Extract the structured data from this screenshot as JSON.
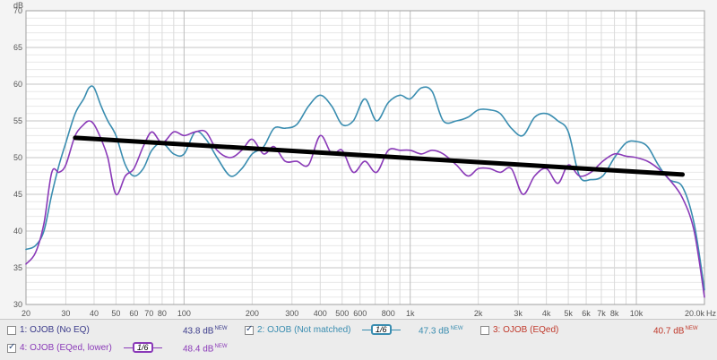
{
  "chart_data": {
    "type": "line",
    "yunit": "dB",
    "xunit": "Hz",
    "xscale": "log",
    "xlim": [
      20,
      20000
    ],
    "ylim": [
      30,
      70
    ],
    "yticks": [
      "30",
      "35",
      "40",
      "45",
      "50",
      "55",
      "60",
      "65",
      "70"
    ],
    "xticks": [
      {
        "v": 20,
        "label": "20"
      },
      {
        "v": 30,
        "label": "30"
      },
      {
        "v": 40,
        "label": "40"
      },
      {
        "v": 50,
        "label": "50"
      },
      {
        "v": 60,
        "label": "60"
      },
      {
        "v": 70,
        "label": "70"
      },
      {
        "v": 80,
        "label": "80"
      },
      {
        "v": 100,
        "label": "100"
      },
      {
        "v": 200,
        "label": "200"
      },
      {
        "v": 300,
        "label": "300"
      },
      {
        "v": 400,
        "label": "400"
      },
      {
        "v": 500,
        "label": "500"
      },
      {
        "v": 600,
        "label": "600"
      },
      {
        "v": 800,
        "label": "800"
      },
      {
        "v": 1000,
        "label": "1k"
      },
      {
        "v": 2000,
        "label": "2k"
      },
      {
        "v": 3000,
        "label": "3k"
      },
      {
        "v": 4000,
        "label": "4k"
      },
      {
        "v": 5000,
        "label": "5k"
      },
      {
        "v": 6000,
        "label": "6k"
      },
      {
        "v": 7000,
        "label": "7k"
      },
      {
        "v": 8000,
        "label": "8k"
      },
      {
        "v": 10000,
        "label": "10k"
      },
      {
        "v": 20000,
        "label": "20.0k"
      }
    ],
    "grid": true,
    "series": [
      {
        "name": "2: OJOB (Not matched)",
        "color": "#3a8db0",
        "x": [
          20,
          22,
          24,
          26,
          28,
          30,
          33,
          36,
          38,
          40,
          43,
          46,
          50,
          55,
          60,
          66,
          72,
          80,
          90,
          100,
          112,
          125,
          140,
          160,
          180,
          200,
          225,
          250,
          280,
          315,
          355,
          400,
          450,
          500,
          560,
          630,
          710,
          800,
          900,
          1000,
          1120,
          1250,
          1400,
          1600,
          1800,
          2000,
          2250,
          2500,
          2800,
          3150,
          3550,
          4000,
          4500,
          5000,
          5600,
          6300,
          7100,
          8000,
          9000,
          10000,
          11200,
          12500,
          14000,
          16000,
          18000,
          20000
        ],
        "y": [
          37.5,
          38,
          40,
          45,
          49,
          52,
          56,
          58,
          59.5,
          59.5,
          57,
          55,
          53,
          49,
          47.5,
          48.5,
          51,
          52,
          50.5,
          50.5,
          53.5,
          52.5,
          50,
          47.5,
          48.5,
          50.5,
          51.5,
          54,
          54,
          54.5,
          57,
          58.5,
          57,
          54.5,
          55,
          58,
          55,
          57.5,
          58.5,
          58,
          59.5,
          59,
          55,
          55,
          55.5,
          56.5,
          56.5,
          56,
          54,
          53,
          55.5,
          56,
          55,
          53.5,
          47.5,
          47,
          47.5,
          50,
          52,
          52.2,
          51.5,
          49,
          47,
          46,
          41,
          32
        ]
      },
      {
        "name": "4: OJOB (EQed, lower)",
        "color": "#8a3ab8",
        "x": [
          20,
          22,
          24,
          26,
          28,
          30,
          33,
          36,
          38,
          40,
          43,
          46,
          50,
          55,
          60,
          66,
          72,
          80,
          90,
          100,
          112,
          125,
          140,
          160,
          180,
          200,
          225,
          250,
          280,
          315,
          355,
          400,
          450,
          500,
          560,
          630,
          710,
          800,
          900,
          1000,
          1120,
          1250,
          1400,
          1600,
          1800,
          2000,
          2250,
          2500,
          2800,
          3150,
          3550,
          4000,
          4500,
          5000,
          5600,
          6300,
          7100,
          8000,
          9000,
          10000,
          11200,
          12500,
          14000,
          16000,
          18000,
          20000
        ],
        "y": [
          35.5,
          37,
          41,
          48,
          48,
          49,
          53,
          54.5,
          55,
          54.5,
          52.5,
          50,
          45,
          47.5,
          48.5,
          51.5,
          53.5,
          52,
          53.5,
          53,
          53.5,
          53.5,
          51,
          50,
          51,
          52.5,
          50.5,
          51.5,
          49.5,
          49.5,
          49,
          53,
          50.5,
          51,
          48,
          49.5,
          48,
          51,
          51,
          51,
          50.5,
          51,
          50.5,
          49,
          47.5,
          48.5,
          48.5,
          48,
          48.5,
          45,
          47.5,
          48.5,
          46.5,
          49,
          47.5,
          48,
          49.5,
          50.5,
          50.2,
          50,
          49.5,
          48.5,
          47,
          44.5,
          40,
          31
        ]
      },
      {
        "name": "trend",
        "color": "#000000",
        "x": [
          33,
          16000
        ],
        "y": [
          52.7,
          47.7
        ]
      }
    ]
  },
  "legend": [
    {
      "id": "1",
      "label": "1: OJOB (No EQ)",
      "value": "43.8 dB",
      "sup": "NEW",
      "checked": false,
      "color": "#3a3a8a"
    },
    {
      "id": "2",
      "label": "2: OJOB (Not matched)",
      "value": "47.3 dB",
      "sup": "NEW",
      "checked": true,
      "color": "#3a8db0",
      "smooth": "1/6"
    },
    {
      "id": "3",
      "label": "3: OJOB (EQed)",
      "value": "40.7 dB",
      "sup": "NEW",
      "checked": false,
      "color": "#c0392b"
    },
    {
      "id": "4",
      "label": "4: OJOB (EQed, lower)",
      "value": "48.4 dB",
      "sup": "NEW",
      "checked": true,
      "color": "#8a3ab8",
      "smooth": "1/6"
    }
  ]
}
